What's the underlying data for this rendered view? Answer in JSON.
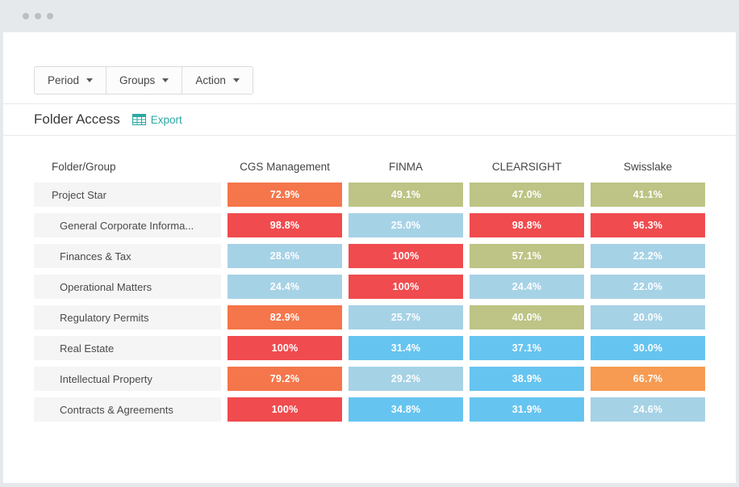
{
  "window": {
    "controls_count": 3,
    "chrome_color": "#e6e9ec",
    "dot_color": "#b9bfc6"
  },
  "toolbar": {
    "buttons": [
      {
        "label": "Period",
        "icon": "caret-down-icon"
      },
      {
        "label": "Groups",
        "icon": "caret-down-icon"
      },
      {
        "label": "Action",
        "icon": "caret-down-icon"
      }
    ]
  },
  "header": {
    "title": "Folder Access",
    "export_label": "Export",
    "export_icon": "table-grid-icon",
    "accent_color": "#2ca8a4"
  },
  "table": {
    "row_header": "Folder/Group",
    "columns": [
      "CGS Management",
      "FINMA",
      "CLEARSIGHT",
      "Swisslake"
    ],
    "rows": [
      {
        "label": "Project Star",
        "indent": 0,
        "cells": [
          {
            "value": "72.9%",
            "color": "#f5764b"
          },
          {
            "value": "49.1%",
            "color": "#bdc485"
          },
          {
            "value": "47.0%",
            "color": "#bdc485"
          },
          {
            "value": "41.1%",
            "color": "#bdc485"
          }
        ]
      },
      {
        "label": "General Corporate Informa...",
        "indent": 1,
        "cells": [
          {
            "value": "98.8%",
            "color": "#f04b4e"
          },
          {
            "value": "25.0%",
            "color": "#a6d2e6"
          },
          {
            "value": "98.8%",
            "color": "#f04b4e"
          },
          {
            "value": "96.3%",
            "color": "#f04b4e"
          }
        ]
      },
      {
        "label": "Finances & Tax",
        "indent": 1,
        "cells": [
          {
            "value": "28.6%",
            "color": "#a6d2e6"
          },
          {
            "value": "100%",
            "color": "#f04b4e"
          },
          {
            "value": "57.1%",
            "color": "#bdc485"
          },
          {
            "value": "22.2%",
            "color": "#a6d2e6"
          }
        ]
      },
      {
        "label": "Operational Matters",
        "indent": 1,
        "cells": [
          {
            "value": "24.4%",
            "color": "#a6d2e6"
          },
          {
            "value": "100%",
            "color": "#f04b4e"
          },
          {
            "value": "24.4%",
            "color": "#a6d2e6"
          },
          {
            "value": "22.0%",
            "color": "#a6d2e6"
          }
        ]
      },
      {
        "label": "Regulatory Permits",
        "indent": 1,
        "cells": [
          {
            "value": "82.9%",
            "color": "#f5764b"
          },
          {
            "value": "25.7%",
            "color": "#a6d2e6"
          },
          {
            "value": "40.0%",
            "color": "#bdc485"
          },
          {
            "value": "20.0%",
            "color": "#a6d2e6"
          }
        ]
      },
      {
        "label": "Real Estate",
        "indent": 1,
        "cells": [
          {
            "value": "100%",
            "color": "#f04b4e"
          },
          {
            "value": "31.4%",
            "color": "#66c4f0"
          },
          {
            "value": "37.1%",
            "color": "#66c4f0"
          },
          {
            "value": "30.0%",
            "color": "#66c4f0"
          }
        ]
      },
      {
        "label": "Intellectual Property",
        "indent": 1,
        "cells": [
          {
            "value": "79.2%",
            "color": "#f5764b"
          },
          {
            "value": "29.2%",
            "color": "#a6d2e6"
          },
          {
            "value": "38.9%",
            "color": "#66c4f0"
          },
          {
            "value": "66.7%",
            "color": "#f79b52"
          }
        ]
      },
      {
        "label": "Contracts & Agreements",
        "indent": 1,
        "cells": [
          {
            "value": "100%",
            "color": "#f04b4e"
          },
          {
            "value": "34.8%",
            "color": "#66c4f0"
          },
          {
            "value": "31.9%",
            "color": "#66c4f0"
          },
          {
            "value": "24.6%",
            "color": "#a6d2e6"
          }
        ]
      }
    ],
    "cell_colors": {
      "red": "#f04b4e",
      "orange": "#f5764b",
      "light_orange": "#f79b52",
      "olive": "#bdc485",
      "blue": "#66c4f0",
      "light_blue": "#a6d2e6",
      "row_label_bg": "#f5f5f6"
    }
  }
}
